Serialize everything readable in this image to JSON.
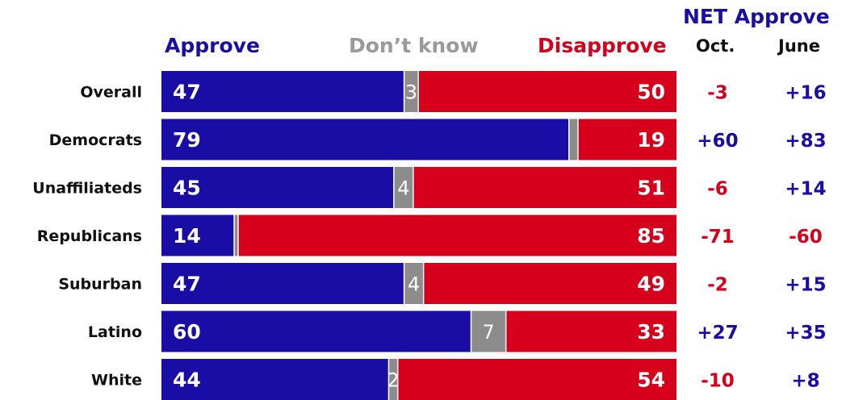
{
  "headers": {
    "approve": "Approve",
    "dont_know": "Don’t know",
    "disapprove": "Disapprove",
    "net_title": "NET Approve",
    "oct": "Oct.",
    "june": "June"
  },
  "colors": {
    "approve": "#1a0da6",
    "dont_know": "#8c8c8c",
    "disapprove": "#d6001c",
    "net_positive": "#1a0da6",
    "net_negative": "#d6001c"
  },
  "chart_data": {
    "type": "bar",
    "stacked": true,
    "orientation": "horizontal",
    "categories": [
      "Overall",
      "Democrats",
      "Unaffiliateds",
      "Republicans",
      "Suburban",
      "Latino",
      "White"
    ],
    "series": [
      {
        "name": "Approve",
        "values": [
          47,
          79,
          45,
          14,
          47,
          60,
          44
        ]
      },
      {
        "name": "Don’t know",
        "values": [
          3,
          2,
          4,
          1,
          4,
          7,
          2
        ]
      },
      {
        "name": "Disapprove",
        "values": [
          50,
          19,
          51,
          85,
          49,
          33,
          54
        ]
      }
    ],
    "dont_know_labels": [
      "3",
      "",
      "4",
      "",
      "4",
      "7",
      "2"
    ],
    "net_approve": {
      "oct": [
        "-3",
        "+60",
        "-6",
        "-71",
        "-2",
        "+27",
        "-10"
      ],
      "june": [
        "+16",
        "+83",
        "+14",
        "-60",
        "+15",
        "+35",
        "+8"
      ]
    },
    "xlim": [
      0,
      100
    ]
  }
}
